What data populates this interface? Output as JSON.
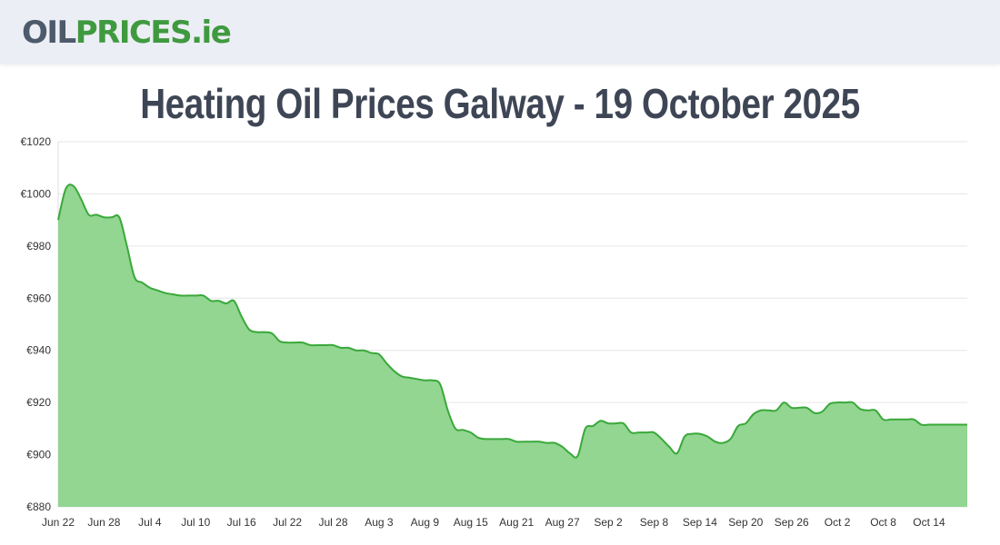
{
  "header": {
    "logo_part1": "OIL",
    "logo_part2": "PRICES",
    "logo_part3": ".ie"
  },
  "page": {
    "title": "Heating Oil Prices Galway - 19 October 2025"
  },
  "colors": {
    "line": "#3aa83a",
    "fill": "#92d691",
    "grid": "#e6e6e6"
  },
  "chart_data": {
    "type": "area",
    "title": "",
    "xlabel": "",
    "ylabel": "",
    "ylim": [
      880,
      1020
    ],
    "yticks": [
      880,
      900,
      920,
      940,
      960,
      980,
      1000,
      1020
    ],
    "ytick_labels": [
      "€880",
      "€900",
      "€920",
      "€940",
      "€960",
      "€980",
      "€1000",
      "€1020"
    ],
    "xlim": [
      "2025-06-22",
      "2025-10-19"
    ],
    "xtick_dates": [
      "2025-06-22",
      "2025-06-28",
      "2025-07-04",
      "2025-07-10",
      "2025-07-16",
      "2025-07-22",
      "2025-07-28",
      "2025-08-03",
      "2025-08-09",
      "2025-08-15",
      "2025-08-21",
      "2025-08-27",
      "2025-09-02",
      "2025-09-08",
      "2025-09-14",
      "2025-09-20",
      "2025-09-26",
      "2025-10-02",
      "2025-10-08",
      "2025-10-14"
    ],
    "xtick_labels": [
      "Jun 22",
      "Jun 28",
      "Jul 4",
      "Jul 10",
      "Jul 16",
      "Jul 22",
      "Jul 28",
      "Aug 3",
      "Aug 9",
      "Aug 15",
      "Aug 21",
      "Aug 27",
      "Sep 2",
      "Sep 8",
      "Sep 14",
      "Sep 20",
      "Sep 26",
      "Oct 2",
      "Oct 8",
      "Oct 14"
    ],
    "grid": true,
    "legend": "none",
    "series": [
      {
        "x": [
          "2025-06-22",
          "2025-06-23",
          "2025-06-24",
          "2025-06-25",
          "2025-06-26",
          "2025-06-27",
          "2025-06-28",
          "2025-06-29",
          "2025-06-30",
          "2025-07-01",
          "2025-07-02",
          "2025-07-03",
          "2025-07-04",
          "2025-07-05",
          "2025-07-06",
          "2025-07-07",
          "2025-07-08",
          "2025-07-09",
          "2025-07-10",
          "2025-07-11",
          "2025-07-12",
          "2025-07-13",
          "2025-07-14",
          "2025-07-15",
          "2025-07-16",
          "2025-07-17",
          "2025-07-18",
          "2025-07-19",
          "2025-07-20",
          "2025-07-21",
          "2025-07-22",
          "2025-07-23",
          "2025-07-24",
          "2025-07-25",
          "2025-07-26",
          "2025-07-27",
          "2025-07-28",
          "2025-07-29",
          "2025-07-30",
          "2025-07-31",
          "2025-08-01",
          "2025-08-02",
          "2025-08-03",
          "2025-08-04",
          "2025-08-05",
          "2025-08-06",
          "2025-08-07",
          "2025-08-08",
          "2025-08-09",
          "2025-08-10",
          "2025-08-11",
          "2025-08-12",
          "2025-08-13",
          "2025-08-14",
          "2025-08-15",
          "2025-08-16",
          "2025-08-17",
          "2025-08-18",
          "2025-08-19",
          "2025-08-20",
          "2025-08-21",
          "2025-08-22",
          "2025-08-23",
          "2025-08-24",
          "2025-08-25",
          "2025-08-26",
          "2025-08-27",
          "2025-08-28",
          "2025-08-29",
          "2025-08-30",
          "2025-08-31",
          "2025-09-01",
          "2025-09-02",
          "2025-09-03",
          "2025-09-04",
          "2025-09-05",
          "2025-09-06",
          "2025-09-07",
          "2025-09-08",
          "2025-09-09",
          "2025-09-10",
          "2025-09-11",
          "2025-09-12",
          "2025-09-13",
          "2025-09-14",
          "2025-09-15",
          "2025-09-16",
          "2025-09-17",
          "2025-09-18",
          "2025-09-19",
          "2025-09-20",
          "2025-09-21",
          "2025-09-22",
          "2025-09-23",
          "2025-09-24",
          "2025-09-25",
          "2025-09-26",
          "2025-09-27",
          "2025-09-28",
          "2025-09-29",
          "2025-09-30",
          "2025-10-01",
          "2025-10-02",
          "2025-10-03",
          "2025-10-04",
          "2025-10-05",
          "2025-10-06",
          "2025-10-07",
          "2025-10-08",
          "2025-10-09",
          "2025-10-10",
          "2025-10-11",
          "2025-10-12",
          "2025-10-13",
          "2025-10-14",
          "2025-10-15",
          "2025-10-16",
          "2025-10-17",
          "2025-10-18",
          "2025-10-19"
        ],
        "values": [
          990,
          1002,
          1003,
          998,
          992,
          992,
          991,
          991,
          991,
          980,
          968,
          966,
          964,
          963,
          962,
          961.5,
          961,
          961,
          961,
          961,
          959,
          959,
          958,
          959,
          953,
          948,
          947,
          947,
          946.5,
          943.5,
          943,
          943,
          943,
          942,
          942,
          942,
          942,
          941,
          941,
          940,
          940,
          939,
          938.5,
          935,
          932,
          930,
          929.5,
          929,
          928.5,
          928.5,
          927,
          917,
          910,
          909.5,
          908.5,
          906.5,
          906,
          906,
          906,
          906,
          905,
          905,
          905,
          905,
          904.5,
          904.5,
          903,
          900.5,
          899.5,
          910,
          911,
          913,
          912,
          912,
          912,
          908.5,
          908.5,
          908.5,
          908.5,
          906,
          903,
          900.5,
          907,
          908,
          908,
          907,
          905,
          904.5,
          906,
          911,
          912,
          915.5,
          917,
          917,
          917,
          920,
          918,
          918,
          918,
          916,
          916.5,
          919.5,
          920,
          920,
          920,
          917.5,
          917,
          917,
          913.5,
          913.5,
          913.5,
          913.5,
          913.5,
          911.5,
          911.5,
          911.5,
          911.5,
          911.5,
          911.5,
          911.5
        ]
      }
    ]
  }
}
